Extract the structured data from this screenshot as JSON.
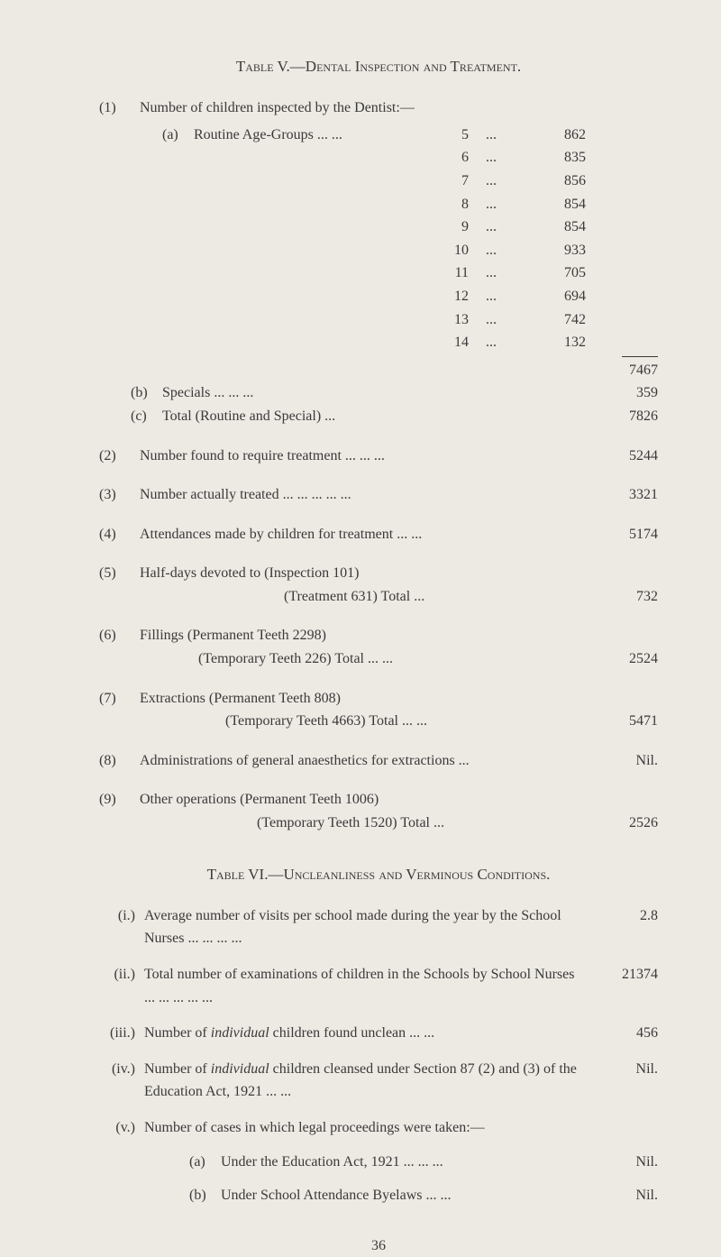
{
  "table5": {
    "title": "Table V.—Dental Inspection and Treatment.",
    "item1": {
      "num": "(1)",
      "text": "Number of children inspected by the Dentist:—",
      "a": {
        "letter": "(a)",
        "label": "Routine Age-Groups  ...     ...",
        "rows": [
          {
            "age": "5",
            "dots": "...",
            "val": "862"
          },
          {
            "age": "6",
            "dots": "...",
            "val": "835"
          },
          {
            "age": "7",
            "dots": "...",
            "val": "856"
          },
          {
            "age": "8",
            "dots": "...",
            "val": "854"
          },
          {
            "age": "9",
            "dots": "...",
            "val": "854"
          },
          {
            "age": "10",
            "dots": "...",
            "val": "933"
          },
          {
            "age": "11",
            "dots": "...",
            "val": "705"
          },
          {
            "age": "12",
            "dots": "...",
            "val": "694"
          },
          {
            "age": "13",
            "dots": "...",
            "val": "742"
          },
          {
            "age": "14",
            "dots": "...",
            "val": "132"
          }
        ],
        "total": "7467"
      },
      "b": {
        "letter": "(b)",
        "label": "Specials             ...     ...     ...",
        "val": "359"
      },
      "c": {
        "letter": "(c)",
        "label": "Total (Routine and Special) ...",
        "val": "7826"
      }
    },
    "item2": {
      "num": "(2)",
      "txt": "Number found to require treatment          ...     ...     ...",
      "val": "5244"
    },
    "item3": {
      "num": "(3)",
      "txt": "Number actually treated       ...     ...     ...     ...     ...",
      "val": "3321"
    },
    "item4": {
      "num": "(4)",
      "txt": "Attendances made by children for treatment     ...     ...",
      "val": "5174"
    },
    "item5": {
      "num": "(5)",
      "line1": "Half-days devoted to (Inspection 101)",
      "line2": "(Treatment 631)          Total      ...",
      "val": "732"
    },
    "item6": {
      "num": "(6)",
      "line1": "Fillings (Permanent Teeth 2298)",
      "line2": "(Temporary Teeth   226)        Total   ...     ...",
      "val": "2524"
    },
    "item7": {
      "num": "(7)",
      "line1": "Extractions (Permanent Teeth   808)",
      "line2": "(Temporary Teeth 4663)     Total   ...     ...",
      "val": "5471"
    },
    "item8": {
      "num": "(8)",
      "txt": "Administrations of general anaesthetics for extractions ...",
      "val": "Nil."
    },
    "item9": {
      "num": "(9)",
      "line1": "Other operations (Permanent Teeth 1006)",
      "line2": "(Temporary Teeth 1520)       Total   ...",
      "val": "2526"
    }
  },
  "table6": {
    "title": "Table VI.—Uncleanliness and Verminous Conditions.",
    "i": {
      "roman": "(i.)",
      "txt": "Average number of visits per school made during the year by the School Nurses       ...     ...     ...     ...",
      "val": "2.8"
    },
    "ii": {
      "roman": "(ii.)",
      "txt": "Total number of examinations of children in the Schools by School Nurses            ...     ...     ...     ...     ...",
      "val": "21374"
    },
    "iii": {
      "roman": "(iii.)",
      "txt": "Number of <em>individual</em> children found unclean      ...     ...",
      "val": "456"
    },
    "iv": {
      "roman": "(iv.)",
      "txt": "Number of <em>individual</em> children cleansed under Section 87 (2) and (3) of the Education Act, 1921   ...     ...",
      "val": "Nil."
    },
    "v": {
      "roman": "(v.)",
      "txt": "Number of cases in which legal proceedings were taken:—",
      "a": {
        "letter": "(a)",
        "label": "Under the Education Act, 1921 ...     ...     ...",
        "val": "Nil."
      },
      "b": {
        "letter": "(b)",
        "label": "Under School Attendance Byelaws        ...     ...",
        "val": "Nil."
      }
    }
  },
  "pageNum": "36"
}
